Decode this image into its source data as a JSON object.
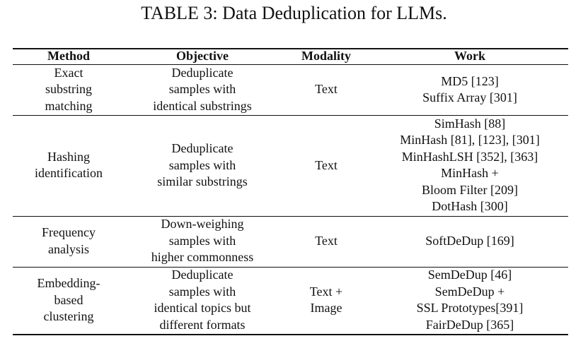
{
  "title": "TABLE 3: Data Deduplication for LLMs.",
  "table": {
    "header": [
      "Method",
      "Objective",
      "Modality",
      "Work"
    ],
    "rows": [
      [
        [
          "Exact",
          "substring",
          "matching"
        ],
        [
          "Deduplicate",
          "samples with",
          "identical substrings"
        ],
        [
          "Text"
        ],
        [
          "MD5 [123]",
          "Suffix Array [301]"
        ]
      ],
      [
        [
          "Hashing",
          "identification"
        ],
        [
          "Deduplicate",
          "samples with",
          "similar substrings"
        ],
        [
          "Text"
        ],
        [
          "SimHash [88]",
          "MinHash [81], [123], [301]",
          "MinHashLSH [352], [363]",
          "MinHash +",
          "Bloom Filter [209]",
          "DotHash [300]"
        ]
      ],
      [
        [
          "Frequency",
          "analysis"
        ],
        [
          "Down-weighing",
          "samples with",
          "higher commonness"
        ],
        [
          "Text"
        ],
        [
          "SoftDeDup [169]"
        ]
      ],
      [
        [
          "Embedding-",
          "based",
          "clustering"
        ],
        [
          "Deduplicate",
          "samples with",
          "identical topics but",
          "different formats"
        ],
        [
          "Text +",
          "Image"
        ],
        [
          "SemDeDup [46]",
          "SemDeDup +",
          "SSL Prototypes[391]",
          "FairDeDup [365]"
        ]
      ]
    ]
  }
}
